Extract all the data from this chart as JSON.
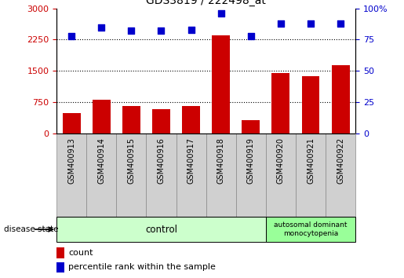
{
  "title": "GDS3819 / 222498_at",
  "samples": [
    "GSM400913",
    "GSM400914",
    "GSM400915",
    "GSM400916",
    "GSM400917",
    "GSM400918",
    "GSM400919",
    "GSM400920",
    "GSM400921",
    "GSM400922"
  ],
  "counts": [
    480,
    810,
    650,
    580,
    650,
    2350,
    320,
    1450,
    1380,
    1630
  ],
  "percentiles": [
    78,
    85,
    82,
    82,
    83,
    96,
    78,
    88,
    88,
    88
  ],
  "bar_color": "#cc0000",
  "dot_color": "#0000cc",
  "left_yticks": [
    0,
    750,
    1500,
    2250,
    3000
  ],
  "right_yticks": [
    0,
    25,
    50,
    75,
    100
  ],
  "left_ylim": [
    0,
    3000
  ],
  "right_ylim": [
    0,
    100
  ],
  "left_tick_color": "#cc0000",
  "right_tick_color": "#0000cc",
  "grid_lines": [
    750,
    1500,
    2250
  ],
  "control_label": "control",
  "disease_label": "autosomal dominant\nmonocytopenia",
  "disease_state_label": "disease state",
  "legend_count": "count",
  "legend_percentile": "percentile rank within the sample",
  "control_color": "#ccffcc",
  "disease_color": "#99ff99",
  "tick_box_color": "#d0d0d0",
  "n_control": 7,
  "n_disease": 3,
  "background_color": "#ffffff"
}
